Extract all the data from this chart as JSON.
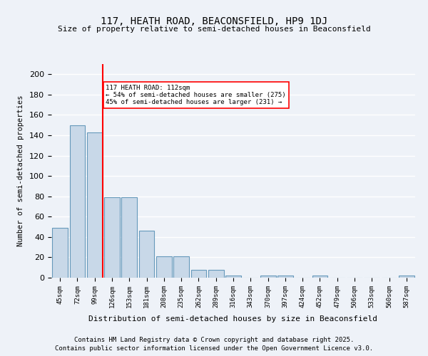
{
  "title": "117, HEATH ROAD, BEACONSFIELD, HP9 1DJ",
  "subtitle": "Size of property relative to semi-detached houses in Beaconsfield",
  "xlabel": "Distribution of semi-detached houses by size in Beaconsfield",
  "ylabel": "Number of semi-detached properties",
  "categories": [
    "45sqm",
    "72sqm",
    "99sqm",
    "126sqm",
    "153sqm",
    "181sqm",
    "208sqm",
    "235sqm",
    "262sqm",
    "289sqm",
    "316sqm",
    "343sqm",
    "370sqm",
    "397sqm",
    "424sqm",
    "452sqm",
    "479sqm",
    "506sqm",
    "533sqm",
    "560sqm",
    "587sqm"
  ],
  "values": [
    49,
    150,
    143,
    79,
    79,
    46,
    21,
    21,
    8,
    8,
    2,
    0,
    2,
    2,
    0,
    2,
    0,
    0,
    0,
    0,
    2
  ],
  "bar_color": "#c8d8e8",
  "bar_edge_color": "#6699bb",
  "ylim": [
    0,
    210
  ],
  "yticks": [
    0,
    20,
    40,
    60,
    80,
    100,
    120,
    140,
    160,
    180,
    200
  ],
  "red_line_x": 2.5,
  "annotation_text": "117 HEATH ROAD: 112sqm\n← 54% of semi-detached houses are smaller (275)\n45% of semi-detached houses are larger (231) →",
  "background_color": "#eef2f8",
  "grid_color": "#ffffff",
  "footer_line1": "Contains HM Land Registry data © Crown copyright and database right 2025.",
  "footer_line2": "Contains public sector information licensed under the Open Government Licence v3.0."
}
